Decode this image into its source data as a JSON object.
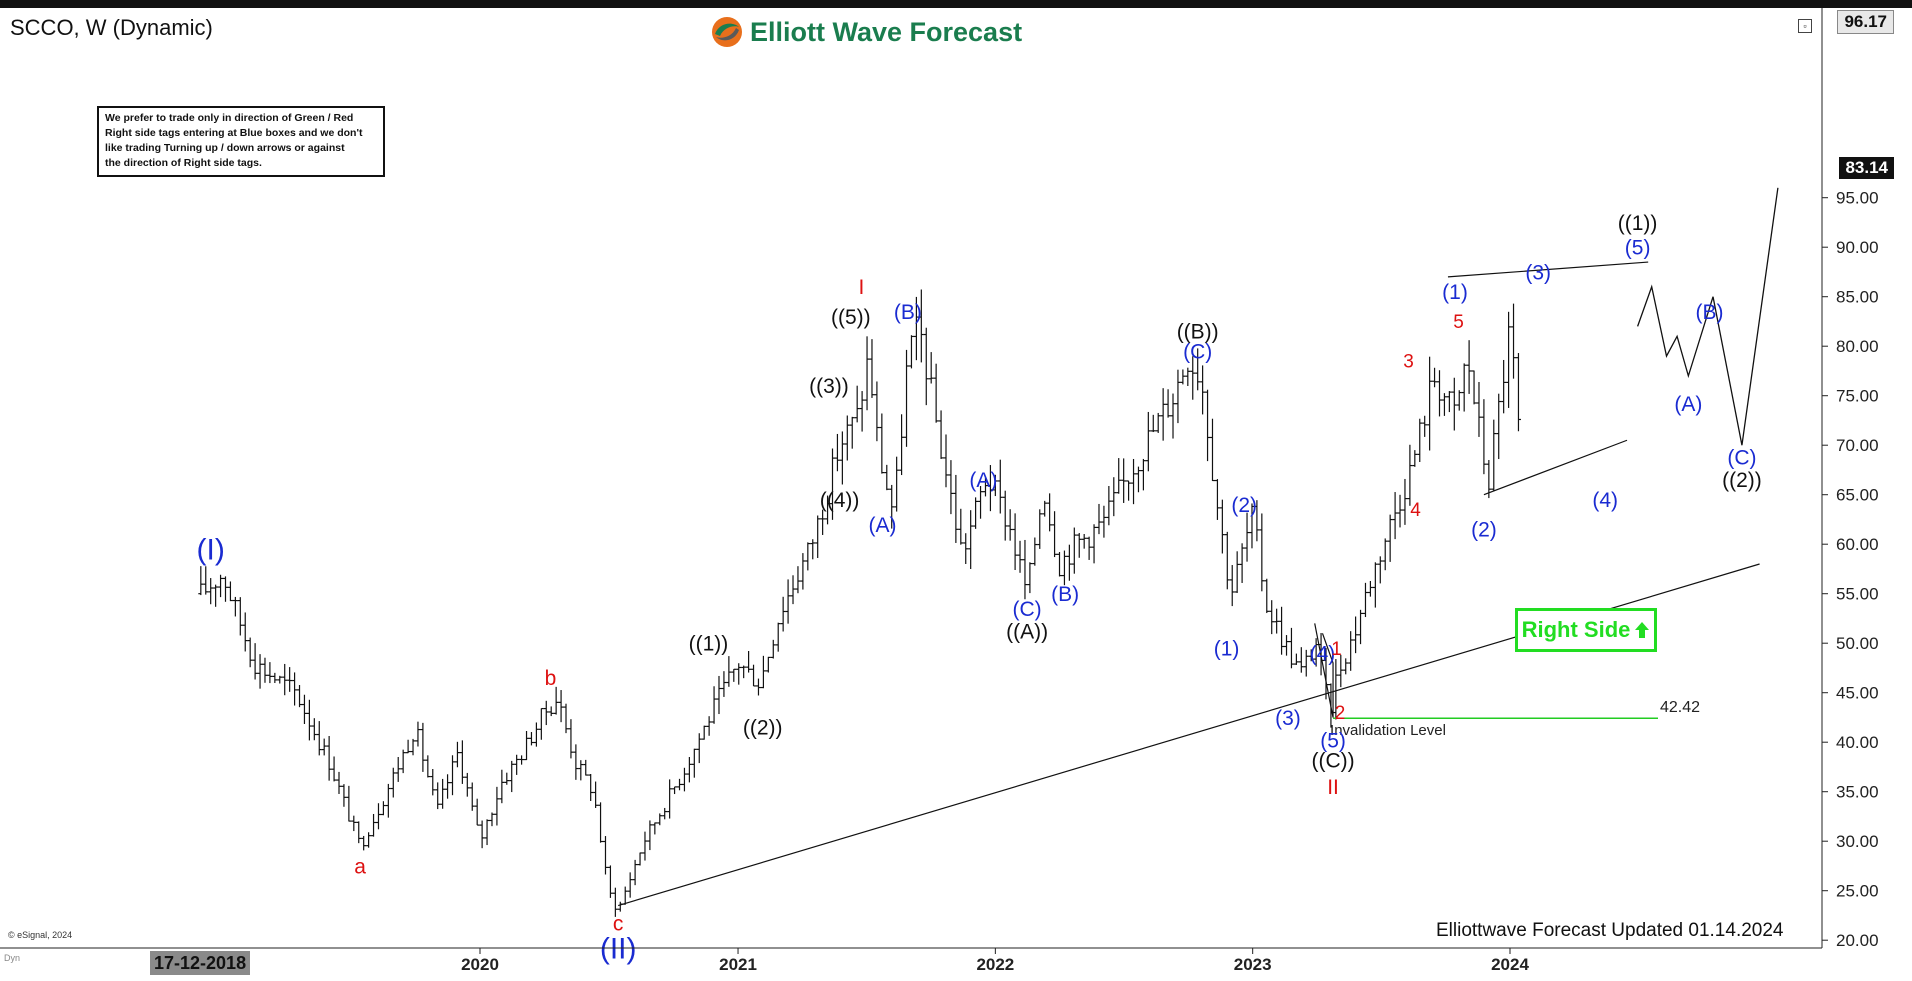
{
  "header": {
    "symbol": "SCCO, W (Dynamic)",
    "brand": "Elliott Wave Forecast"
  },
  "note_lines": [
    "We prefer to trade only in direction of Green / Red",
    "Right side tags entering at Blue boxes and we don't",
    "like trading Turning up / down arrows or against",
    "the direction of Right side tags."
  ],
  "right_side_tag": {
    "label": "Right Side",
    "icon": "up-arrow-icon"
  },
  "footer": {
    "updated": "Elliottwave Forecast Updated 01.14.2024",
    "copyright": "© eSignal, 2024",
    "date_chip": "17-12-2018",
    "dyn": "Dyn"
  },
  "colors": {
    "brand_green": "#1a7d4e",
    "wave_blue": "#1a2bd1",
    "wave_red": "#dd1111",
    "wave_black": "#111111",
    "right_side_green": "#22dd22",
    "invalidation_green": "#22cc22"
  },
  "chart_data": {
    "type": "ohlc",
    "symbol": "SCCO",
    "interval": "W",
    "ylim": [
      18,
      97
    ],
    "y_ticks": [
      "20.00",
      "25.00",
      "30.00",
      "35.00",
      "40.00",
      "45.00",
      "50.00",
      "55.00",
      "60.00",
      "65.00",
      "70.00",
      "75.00",
      "80.00",
      "85.00",
      "90.00",
      "95.00"
    ],
    "x_ticks": [
      "2020",
      "2021",
      "2022",
      "2023",
      "2024"
    ],
    "price_labels": {
      "top": "96.17",
      "last": "83.14"
    },
    "last_price": 83.14,
    "top_price": 96.17,
    "price_path": [
      [
        "2018-12-01",
        55
      ],
      [
        "2019-01-01",
        57
      ],
      [
        "2019-02-15",
        48
      ],
      [
        "2019-04-15",
        45
      ],
      [
        "2019-06-01",
        38
      ],
      [
        "2019-07-15",
        29.5
      ],
      [
        "2019-08-15",
        34
      ],
      [
        "2019-10-01",
        41.5
      ],
      [
        "2019-11-01",
        33
      ],
      [
        "2019-12-01",
        39
      ],
      [
        "2020-01-01",
        30
      ],
      [
        "2020-02-01",
        36
      ],
      [
        "2020-03-01",
        39
      ],
      [
        "2020-04-01",
        43
      ],
      [
        "2020-04-20",
        44.5
      ],
      [
        "2020-05-15",
        38
      ],
      [
        "2020-06-10",
        35
      ],
      [
        "2020-07-01",
        25
      ],
      [
        "2020-07-15",
        23
      ],
      [
        "2020-08-20",
        30
      ],
      [
        "2020-10-15",
        37
      ],
      [
        "2020-12-01",
        44
      ],
      [
        "2021-01-01",
        48
      ],
      [
        "2021-02-01",
        46
      ],
      [
        "2021-03-01",
        53
      ],
      [
        "2021-04-15",
        60
      ],
      [
        "2021-05-10",
        66
      ],
      [
        "2021-05-25",
        70
      ],
      [
        "2021-06-20",
        73
      ],
      [
        "2021-07-05",
        79
      ],
      [
        "2021-07-20",
        69
      ],
      [
        "2021-08-10",
        63
      ],
      [
        "2021-08-30",
        79
      ],
      [
        "2021-09-15",
        82
      ],
      [
        "2021-10-15",
        70
      ],
      [
        "2021-11-15",
        59
      ],
      [
        "2021-12-20",
        67
      ],
      [
        "2022-01-20",
        62
      ],
      [
        "2022-02-15",
        55
      ],
      [
        "2022-03-10",
        66
      ],
      [
        "2022-04-01",
        58
      ],
      [
        "2022-04-25",
        60
      ],
      [
        "2022-06-01",
        62
      ],
      [
        "2022-07-01",
        66
      ],
      [
        "2022-08-01",
        70
      ],
      [
        "2022-09-10",
        75
      ],
      [
        "2022-10-01",
        79
      ],
      [
        "2022-10-20",
        77
      ],
      [
        "2022-11-10",
        65
      ],
      [
        "2022-12-01",
        55
      ],
      [
        "2023-01-01",
        63
      ],
      [
        "2023-01-20",
        54
      ],
      [
        "2023-02-15",
        50
      ],
      [
        "2023-03-10",
        47
      ],
      [
        "2023-04-01",
        50
      ],
      [
        "2023-04-20",
        43
      ],
      [
        "2023-05-01",
        47
      ],
      [
        "2023-05-25",
        51
      ],
      [
        "2023-06-15",
        56
      ],
      [
        "2023-07-15",
        62
      ],
      [
        "2023-08-15",
        68
      ],
      [
        "2023-09-15",
        77
      ],
      [
        "2023-10-15",
        73
      ],
      [
        "2023-11-01",
        79
      ],
      [
        "2023-12-01",
        66
      ],
      [
        "2024-01-01",
        82
      ],
      [
        "2024-01-20",
        66
      ],
      [
        "2024-02-10",
        66
      ],
      [
        "2024-03-01",
        78
      ],
      [
        "2024-04-15",
        87
      ],
      [
        "2024-05-10",
        77
      ],
      [
        "2024-06-10",
        81
      ],
      [
        "2024-07-10",
        72
      ],
      [
        "2024-08-10",
        70
      ],
      [
        "2024-09-10",
        77
      ],
      [
        "2024-10-15",
        88
      ],
      [
        "2024-11-01",
        85
      ],
      [
        "2024-11-15",
        83.14
      ]
    ],
    "invalidation": {
      "level": 42.42,
      "label": "Invalidation Level",
      "value_label": "42.42"
    },
    "wave_labels": [
      {
        "text": "(I)",
        "x": "2018-12-15",
        "y": 59.5,
        "color": "blue",
        "size": "large"
      },
      {
        "text": "a",
        "x": "2019-07-15",
        "y": 27.5,
        "color": "red",
        "size": "medium"
      },
      {
        "text": "b",
        "x": "2020-04-10",
        "y": 46.5,
        "color": "red",
        "size": "medium"
      },
      {
        "text": "c",
        "x": "2020-07-15",
        "y": 21.7,
        "color": "red",
        "size": "medium"
      },
      {
        "text": "(II)",
        "x": "2020-07-15",
        "y": 19.2,
        "color": "blue",
        "size": "large"
      },
      {
        "text": "((1))",
        "x": "2020-11-20",
        "y": 50,
        "color": "black",
        "size": "medium"
      },
      {
        "text": "((2))",
        "x": "2021-02-05",
        "y": 41.5,
        "color": "black",
        "size": "medium"
      },
      {
        "text": "((3))",
        "x": "2021-05-10",
        "y": 76,
        "color": "black",
        "size": "medium"
      },
      {
        "text": "((4))",
        "x": "2021-05-25",
        "y": 64.5,
        "color": "black",
        "size": "medium"
      },
      {
        "text": "((5))",
        "x": "2021-06-10",
        "y": 83,
        "color": "black",
        "size": "medium"
      },
      {
        "text": "I",
        "x": "2021-06-25",
        "y": 86,
        "color": "red",
        "size": "medium"
      },
      {
        "text": "(A)",
        "x": "2021-07-25",
        "y": 62,
        "color": "blue",
        "size": "medium"
      },
      {
        "text": "(B)",
        "x": "2021-08-30",
        "y": 83.5,
        "color": "blue",
        "size": "medium"
      },
      {
        "text": "(A)",
        "x": "2021-12-15",
        "y": 66.5,
        "color": "blue",
        "size": "medium"
      },
      {
        "text": "(C)",
        "x": "2022-02-15",
        "y": 53.5,
        "color": "blue",
        "size": "medium"
      },
      {
        "text": "((A))",
        "x": "2022-02-15",
        "y": 51.2,
        "color": "black",
        "size": "medium"
      },
      {
        "text": "(B)",
        "x": "2022-04-10",
        "y": 55,
        "color": "blue",
        "size": "medium"
      },
      {
        "text": "((B))",
        "x": "2022-10-15",
        "y": 81.5,
        "color": "black",
        "size": "medium"
      },
      {
        "text": "(C)",
        "x": "2022-10-15",
        "y": 79.5,
        "color": "blue",
        "size": "medium"
      },
      {
        "text": "(2)",
        "x": "2022-12-20",
        "y": 64,
        "color": "blue",
        "size": "medium"
      },
      {
        "text": "(1)",
        "x": "2022-11-25",
        "y": 49.5,
        "color": "blue",
        "size": "medium"
      },
      {
        "text": "(3)",
        "x": "2023-02-20",
        "y": 42.5,
        "color": "blue",
        "size": "medium"
      },
      {
        "text": "(4)",
        "x": "2023-04-10",
        "y": 49,
        "color": "blue",
        "size": "medium"
      },
      {
        "text": "1",
        "x": "2023-04-30",
        "y": 49.5,
        "color": "red",
        "size": "small"
      },
      {
        "text": "2",
        "x": "2023-05-05",
        "y": 43,
        "color": "red",
        "size": "small"
      },
      {
        "text": "(5)",
        "x": "2023-04-25",
        "y": 40.2,
        "color": "blue",
        "size": "medium"
      },
      {
        "text": "((C))",
        "x": "2023-04-25",
        "y": 38.2,
        "color": "black",
        "size": "medium"
      },
      {
        "text": "II",
        "x": "2023-04-25",
        "y": 35.5,
        "color": "red",
        "size": "medium"
      },
      {
        "text": "3",
        "x": "2023-08-10",
        "y": 78.5,
        "color": "red",
        "size": "small"
      },
      {
        "text": "4",
        "x": "2023-08-20",
        "y": 63.5,
        "color": "red",
        "size": "small"
      },
      {
        "text": "(1)",
        "x": "2023-10-15",
        "y": 85.5,
        "color": "blue",
        "size": "medium"
      },
      {
        "text": "5",
        "x": "2023-10-20",
        "y": 82.5,
        "color": "red",
        "size": "small"
      },
      {
        "text": "(2)",
        "x": "2023-11-25",
        "y": 61.5,
        "color": "blue",
        "size": "medium"
      },
      {
        "text": "(3)",
        "x": "2024-02-10",
        "y": 87.5,
        "color": "blue",
        "size": "medium"
      },
      {
        "text": "(4)",
        "x": "2024-05-15",
        "y": 64.5,
        "color": "blue",
        "size": "medium"
      },
      {
        "text": "((1))",
        "x": "2024-06-30",
        "y": 92.5,
        "color": "black",
        "size": "medium"
      },
      {
        "text": "(5)",
        "x": "2024-06-30",
        "y": 90,
        "color": "blue",
        "size": "medium"
      },
      {
        "text": "(B)",
        "x": "2024-10-10",
        "y": 83.5,
        "color": "blue",
        "size": "medium"
      },
      {
        "text": "(A)",
        "x": "2024-09-10",
        "y": 74.2,
        "color": "blue",
        "size": "medium"
      },
      {
        "text": "(C)",
        "x": "2024-11-25",
        "y": 68.8,
        "color": "blue",
        "size": "medium"
      },
      {
        "text": "((2))",
        "x": "2024-11-25",
        "y": 66.5,
        "color": "black",
        "size": "medium"
      }
    ],
    "projection_path": [
      [
        "2024-06-30",
        82
      ],
      [
        "2024-07-20",
        86
      ],
      [
        "2024-08-10",
        79
      ],
      [
        "2024-08-25",
        81
      ],
      [
        "2024-09-10",
        77
      ],
      [
        "2024-10-15",
        85
      ],
      [
        "2024-11-25",
        70
      ],
      [
        "2025-01-15",
        96
      ]
    ],
    "trend_line": [
      [
        "2020-07-15",
        23.5
      ],
      [
        "2024-12-20",
        58
      ]
    ],
    "triangles": [
      [
        [
          "2023-03-30",
          52
        ],
        [
          "2023-04-25",
          42.5
        ],
        [
          "2023-04-25",
          48
        ],
        [
          "2023-04-10",
          51
        ]
      ],
      [
        [
          "2023-10-05",
          87
        ],
        [
          "2024-07-15",
          88.5
        ]
      ],
      [
        [
          "2023-11-25",
          65
        ],
        [
          "2024-06-15",
          70.5
        ]
      ]
    ]
  }
}
